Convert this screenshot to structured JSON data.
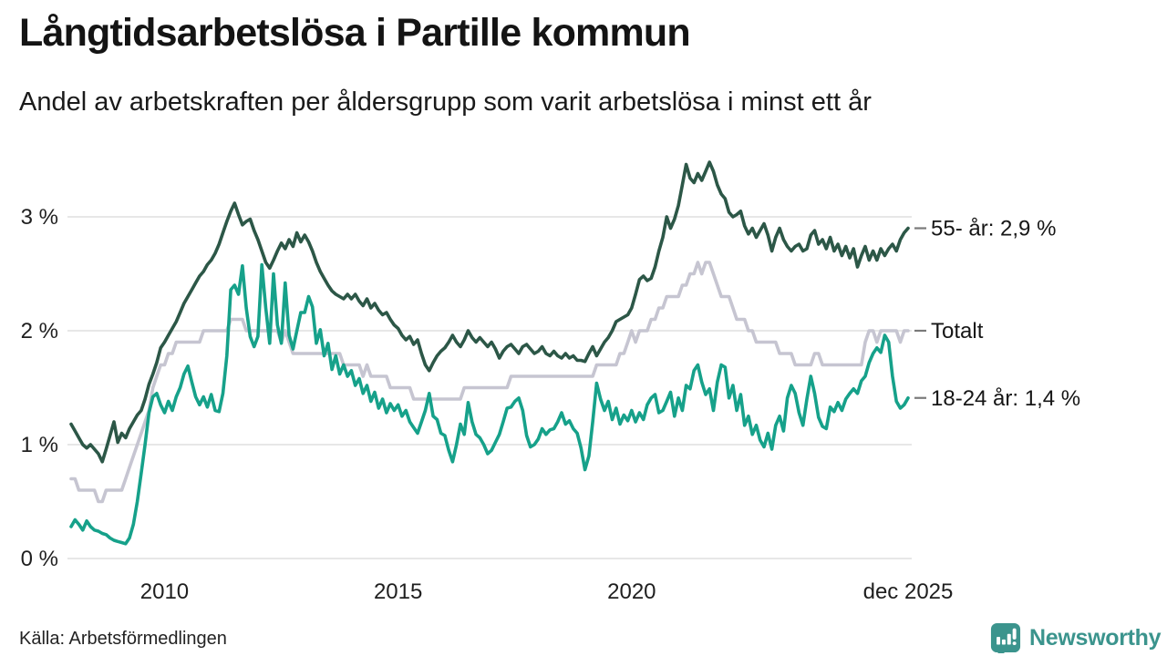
{
  "header": {
    "title": "Långtidsarbetslösa i Partille kommun",
    "subtitle": "Andel av arbetskraften per åldersgrupp som varit arbetslösa i minst ett år"
  },
  "footer": {
    "source": "Källa: Arbetsförmedlingen",
    "brand": "Newsworthy"
  },
  "colors": {
    "series_55": "#2c5747",
    "series_totalt": "#c6c5d1",
    "series_1824": "#16a18a",
    "grid": "#e7e7e7",
    "end_tick": "#7a7a7a",
    "text": "#1f1f1f",
    "brand_teal": "#3b948d"
  },
  "chart_data": {
    "type": "line",
    "title": "Långtidsarbetslösa i Partille kommun",
    "subtitle": "Andel av arbetskraften per åldersgrupp som varit arbetslösa i minst ett år",
    "x_unit": "month",
    "x_start": "2008-01",
    "x_end": "2025-12",
    "grid": true,
    "ylim": [
      0,
      3.6
    ],
    "y_ticks": [
      {
        "value": 0,
        "label": "0 %"
      },
      {
        "value": 1,
        "label": "1 %"
      },
      {
        "value": 2,
        "label": "2 %"
      },
      {
        "value": 3,
        "label": "3 %"
      }
    ],
    "x_ticks": [
      {
        "month_index": 24,
        "label": "2010"
      },
      {
        "month_index": 84,
        "label": "2015"
      },
      {
        "month_index": 144,
        "label": "2020"
      },
      {
        "month_index": 215,
        "label": "dec 2025"
      }
    ],
    "series": [
      {
        "name": "55- år",
        "end_label": "55- år: 2,9 %",
        "end_value": 2.9,
        "color": "#2c5747",
        "z_index": 2,
        "values": [
          1.18,
          1.12,
          1.06,
          1.0,
          0.97,
          1.0,
          0.96,
          0.92,
          0.85,
          0.96,
          1.08,
          1.2,
          1.02,
          1.1,
          1.06,
          1.14,
          1.2,
          1.26,
          1.3,
          1.4,
          1.53,
          1.62,
          1.72,
          1.85,
          1.9,
          1.96,
          2.02,
          2.08,
          2.16,
          2.24,
          2.3,
          2.36,
          2.42,
          2.48,
          2.52,
          2.58,
          2.62,
          2.68,
          2.76,
          2.86,
          2.96,
          3.05,
          3.12,
          3.02,
          2.93,
          2.96,
          2.98,
          2.88,
          2.8,
          2.7,
          2.6,
          2.55,
          2.62,
          2.7,
          2.77,
          2.72,
          2.8,
          2.74,
          2.86,
          2.78,
          2.84,
          2.78,
          2.7,
          2.6,
          2.52,
          2.46,
          2.4,
          2.35,
          2.32,
          2.3,
          2.28,
          2.32,
          2.28,
          2.32,
          2.26,
          2.22,
          2.28,
          2.2,
          2.24,
          2.18,
          2.14,
          2.16,
          2.1,
          2.05,
          2.02,
          1.96,
          1.92,
          1.95,
          1.88,
          1.92,
          1.8,
          1.7,
          1.65,
          1.72,
          1.78,
          1.82,
          1.85,
          1.9,
          1.96,
          1.9,
          1.86,
          1.92,
          2.0,
          1.94,
          1.9,
          1.94,
          1.9,
          1.86,
          1.9,
          1.84,
          1.76,
          1.82,
          1.86,
          1.88,
          1.84,
          1.8,
          1.86,
          1.88,
          1.84,
          1.8,
          1.82,
          1.86,
          1.8,
          1.78,
          1.82,
          1.78,
          1.76,
          1.8,
          1.76,
          1.78,
          1.74,
          1.74,
          1.73,
          1.8,
          1.86,
          1.78,
          1.84,
          1.9,
          1.94,
          2.0,
          2.08,
          2.1,
          2.12,
          2.14,
          2.2,
          2.32,
          2.45,
          2.48,
          2.44,
          2.46,
          2.56,
          2.7,
          2.82,
          3.0,
          2.9,
          2.98,
          3.1,
          3.28,
          3.46,
          3.34,
          3.3,
          3.38,
          3.32,
          3.4,
          3.48,
          3.4,
          3.28,
          3.2,
          3.16,
          3.04,
          3.0,
          3.02,
          3.05,
          2.92,
          2.85,
          2.9,
          2.82,
          2.88,
          2.94,
          2.84,
          2.7,
          2.82,
          2.9,
          2.8,
          2.74,
          2.7,
          2.74,
          2.76,
          2.7,
          2.72,
          2.84,
          2.88,
          2.76,
          2.8,
          2.72,
          2.82,
          2.7,
          2.76,
          2.66,
          2.74,
          2.64,
          2.72,
          2.56,
          2.66,
          2.74,
          2.62,
          2.7,
          2.62,
          2.72,
          2.66,
          2.72,
          2.76,
          2.7,
          2.8,
          2.86,
          2.9
        ]
      },
      {
        "name": "Totalt",
        "end_label": "Totalt",
        "end_value": 2.0,
        "color": "#c6c5d1",
        "z_index": 1,
        "values": [
          0.7,
          0.7,
          0.6,
          0.6,
          0.6,
          0.6,
          0.6,
          0.5,
          0.5,
          0.6,
          0.6,
          0.6,
          0.6,
          0.6,
          0.7,
          0.8,
          0.9,
          1.0,
          1.1,
          1.2,
          1.3,
          1.5,
          1.6,
          1.7,
          1.7,
          1.8,
          1.8,
          1.9,
          1.9,
          1.9,
          1.9,
          1.9,
          1.9,
          1.9,
          2.0,
          2.0,
          2.0,
          2.0,
          2.0,
          2.0,
          2.0,
          2.1,
          2.1,
          2.1,
          2.1,
          2.0,
          2.0,
          2.0,
          2.0,
          2.0,
          2.0,
          2.0,
          2.0,
          2.0,
          1.9,
          2.0,
          1.9,
          1.8,
          1.8,
          1.8,
          1.8,
          1.8,
          1.8,
          1.8,
          1.8,
          1.8,
          1.8,
          1.8,
          1.8,
          1.8,
          1.7,
          1.7,
          1.7,
          1.7,
          1.7,
          1.6,
          1.7,
          1.6,
          1.6,
          1.6,
          1.6,
          1.6,
          1.5,
          1.5,
          1.5,
          1.5,
          1.5,
          1.5,
          1.4,
          1.4,
          1.4,
          1.4,
          1.4,
          1.4,
          1.4,
          1.4,
          1.4,
          1.4,
          1.4,
          1.4,
          1.4,
          1.5,
          1.5,
          1.5,
          1.5,
          1.5,
          1.5,
          1.5,
          1.5,
          1.5,
          1.5,
          1.5,
          1.5,
          1.6,
          1.6,
          1.6,
          1.6,
          1.6,
          1.6,
          1.6,
          1.6,
          1.6,
          1.6,
          1.6,
          1.6,
          1.6,
          1.6,
          1.6,
          1.6,
          1.6,
          1.6,
          1.6,
          1.6,
          1.6,
          1.6,
          1.7,
          1.7,
          1.7,
          1.7,
          1.7,
          1.7,
          1.8,
          1.8,
          1.9,
          2.0,
          1.9,
          2.0,
          2.0,
          2.0,
          2.1,
          2.1,
          2.2,
          2.2,
          2.3,
          2.3,
          2.3,
          2.3,
          2.4,
          2.4,
          2.5,
          2.5,
          2.6,
          2.5,
          2.6,
          2.6,
          2.5,
          2.4,
          2.3,
          2.3,
          2.3,
          2.2,
          2.1,
          2.1,
          2.1,
          2.0,
          2.0,
          1.9,
          1.9,
          1.9,
          1.9,
          1.9,
          1.9,
          1.8,
          1.8,
          1.8,
          1.8,
          1.7,
          1.7,
          1.7,
          1.7,
          1.7,
          1.8,
          1.8,
          1.7,
          1.7,
          1.7,
          1.7,
          1.7,
          1.7,
          1.7,
          1.7,
          1.7,
          1.7,
          1.7,
          1.9,
          2.0,
          2.0,
          1.9,
          2.0,
          2.0,
          2.0,
          2.0,
          2.0,
          1.9,
          2.0,
          2.0
        ]
      },
      {
        "name": "18-24 år",
        "end_label": "18-24 år: 1,4 %",
        "end_value": 1.4,
        "color": "#16a18a",
        "z_index": 3,
        "values": [
          0.28,
          0.34,
          0.3,
          0.25,
          0.33,
          0.28,
          0.25,
          0.24,
          0.22,
          0.21,
          0.18,
          0.16,
          0.15,
          0.14,
          0.13,
          0.18,
          0.3,
          0.5,
          0.75,
          1.0,
          1.28,
          1.42,
          1.45,
          1.35,
          1.28,
          1.38,
          1.3,
          1.42,
          1.5,
          1.62,
          1.69,
          1.55,
          1.42,
          1.35,
          1.42,
          1.33,
          1.44,
          1.3,
          1.29,
          1.45,
          1.78,
          2.36,
          2.4,
          2.32,
          2.57,
          2.2,
          1.95,
          1.86,
          1.95,
          2.58,
          2.2,
          1.89,
          2.5,
          2.05,
          1.89,
          2.42,
          1.96,
          1.84,
          2.0,
          2.16,
          2.16,
          2.3,
          2.21,
          1.89,
          2.01,
          1.78,
          1.89,
          1.66,
          1.78,
          1.62,
          1.7,
          1.6,
          1.65,
          1.52,
          1.58,
          1.45,
          1.52,
          1.38,
          1.46,
          1.32,
          1.4,
          1.28,
          1.36,
          1.3,
          1.35,
          1.25,
          1.3,
          1.2,
          1.15,
          1.1,
          1.2,
          1.3,
          1.45,
          1.25,
          1.22,
          1.1,
          1.08,
          0.95,
          0.85,
          1.0,
          1.18,
          1.09,
          1.37,
          1.2,
          1.09,
          1.06,
          1.0,
          0.92,
          0.95,
          1.02,
          1.09,
          1.2,
          1.32,
          1.33,
          1.38,
          1.41,
          1.3,
          1.08,
          0.98,
          1.0,
          1.05,
          1.14,
          1.09,
          1.13,
          1.14,
          1.2,
          1.28,
          1.18,
          1.21,
          1.14,
          1.1,
          0.97,
          0.78,
          0.9,
          1.2,
          1.54,
          1.4,
          1.3,
          1.38,
          1.22,
          1.32,
          1.18,
          1.26,
          1.21,
          1.3,
          1.2,
          1.28,
          1.22,
          1.35,
          1.41,
          1.44,
          1.28,
          1.3,
          1.38,
          1.46,
          1.25,
          1.41,
          1.3,
          1.52,
          1.49,
          1.65,
          1.7,
          1.55,
          1.44,
          1.49,
          1.3,
          1.55,
          1.7,
          1.68,
          1.41,
          1.52,
          1.3,
          1.44,
          1.17,
          1.25,
          1.09,
          1.17,
          1.04,
          0.98,
          1.1,
          0.96,
          1.17,
          1.25,
          1.12,
          1.41,
          1.52,
          1.45,
          1.28,
          1.17,
          1.4,
          1.6,
          1.45,
          1.24,
          1.16,
          1.14,
          1.33,
          1.29,
          1.37,
          1.3,
          1.4,
          1.45,
          1.49,
          1.45,
          1.56,
          1.6,
          1.72,
          1.8,
          1.85,
          1.81,
          1.96,
          1.9,
          1.6,
          1.38,
          1.32,
          1.35,
          1.41
        ]
      }
    ]
  }
}
